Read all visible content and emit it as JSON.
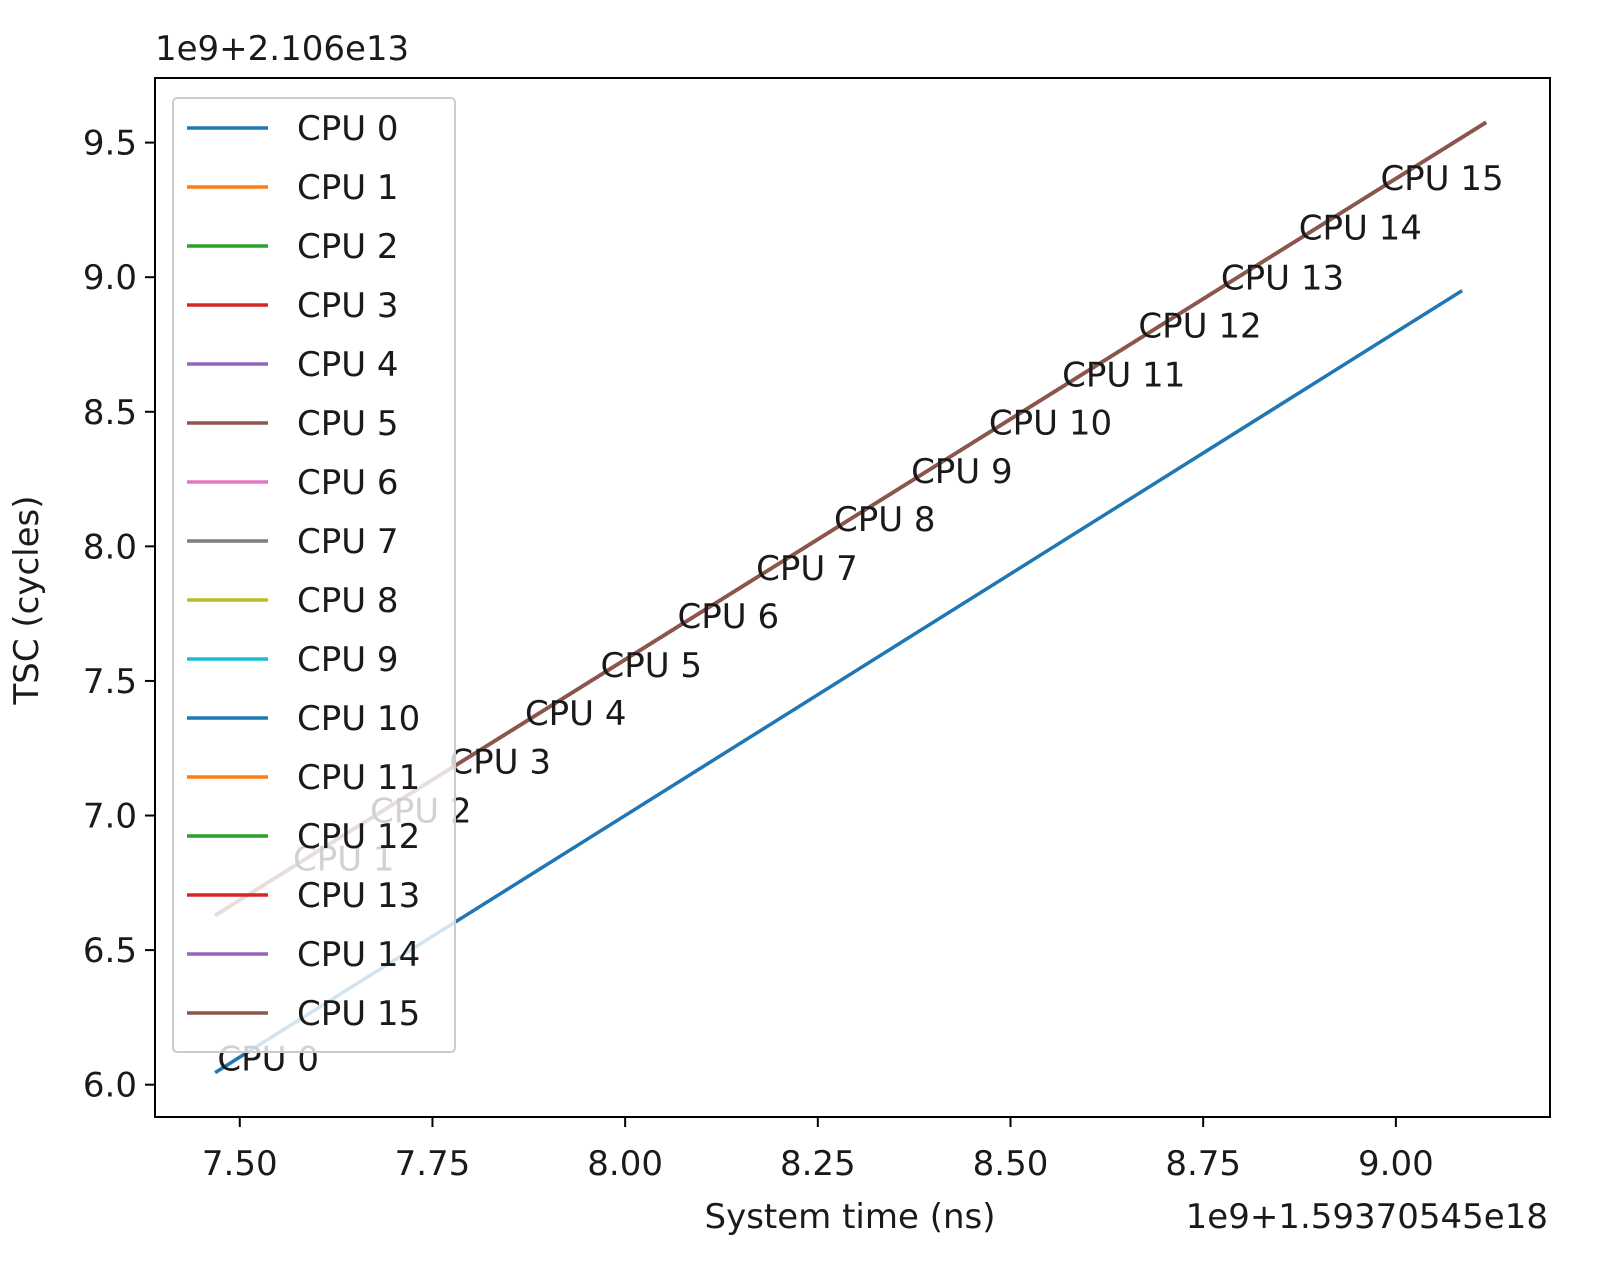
{
  "chart_data": {
    "type": "line",
    "y_label": "TSC (cycles)",
    "x_label": "System time (ns)",
    "y_offset": "1e9+2.106e13",
    "x_offset": "1e9+1.59370545e18",
    "xlim": [
      7.39,
      9.2
    ],
    "ylim": [
      5.88,
      9.74
    ],
    "xticks": [
      {
        "value": 7.5,
        "label": "7.50"
      },
      7.75,
      {
        "value": 8.0,
        "label": "8.00"
      },
      8.25,
      {
        "value": 8.5,
        "label": "8.50"
      },
      8.75,
      {
        "value": 9.0,
        "label": "9.00"
      }
    ],
    "yticks": [
      {
        "value": 6.0,
        "label": "6.0"
      },
      6.5,
      {
        "value": 7.0,
        "label": "7.0"
      },
      7.5,
      {
        "value": 8.0,
        "label": "8.0"
      },
      8.5,
      {
        "value": 9.0,
        "label": "9.0"
      },
      9.5
    ],
    "legend": "upper left",
    "series": [
      {
        "name": "CPU 0",
        "color": "#1f77b4",
        "x": [
          7.468,
          9.086
        ],
        "values": [
          6.045,
          8.95
        ]
      },
      {
        "name": "CPU 1",
        "color": "#ff7f0e",
        "x": [
          7.468,
          9.117
        ],
        "values": [
          6.629,
          9.575
        ]
      },
      {
        "name": "CPU 2",
        "color": "#2ca02c",
        "x": [
          7.468,
          9.117
        ],
        "values": [
          6.629,
          9.575
        ]
      },
      {
        "name": "CPU 3",
        "color": "#d62728",
        "x": [
          7.468,
          9.117
        ],
        "values": [
          6.629,
          9.575
        ]
      },
      {
        "name": "CPU 4",
        "color": "#9467bd",
        "x": [
          7.468,
          9.117
        ],
        "values": [
          6.629,
          9.575
        ]
      },
      {
        "name": "CPU 5",
        "color": "#8c564b",
        "x": [
          7.468,
          9.117
        ],
        "values": [
          6.629,
          9.575
        ]
      },
      {
        "name": "CPU 6",
        "color": "#e377c2",
        "x": [
          7.468,
          9.117
        ],
        "values": [
          6.629,
          9.575
        ]
      },
      {
        "name": "CPU 7",
        "color": "#7f7f7f",
        "x": [
          7.468,
          9.117
        ],
        "values": [
          6.629,
          9.575
        ]
      },
      {
        "name": "CPU 8",
        "color": "#bcbd22",
        "x": [
          7.468,
          9.117
        ],
        "values": [
          6.629,
          9.575
        ]
      },
      {
        "name": "CPU 9",
        "color": "#17becf",
        "x": [
          7.468,
          9.117
        ],
        "values": [
          6.629,
          9.575
        ]
      },
      {
        "name": "CPU 10",
        "color": "#1f77b4",
        "x": [
          7.468,
          9.117
        ],
        "values": [
          6.629,
          9.575
        ]
      },
      {
        "name": "CPU 11",
        "color": "#ff7f0e",
        "x": [
          7.468,
          9.117
        ],
        "values": [
          6.629,
          9.575
        ]
      },
      {
        "name": "CPU 12",
        "color": "#2ca02c",
        "x": [
          7.468,
          9.117
        ],
        "values": [
          6.629,
          9.575
        ]
      },
      {
        "name": "CPU 13",
        "color": "#d62728",
        "x": [
          7.468,
          9.117
        ],
        "values": [
          6.629,
          9.575
        ]
      },
      {
        "name": "CPU 14",
        "color": "#9467bd",
        "x": [
          7.468,
          9.117
        ],
        "values": [
          6.629,
          9.575
        ]
      },
      {
        "name": "CPU 15",
        "color": "#8c564b",
        "x": [
          7.468,
          9.117
        ],
        "values": [
          6.629,
          9.575
        ]
      }
    ],
    "annotations": [
      {
        "text": "CPU 0",
        "x": 7.471,
        "y": 6.052
      },
      {
        "text": "CPU 1",
        "x": 7.569,
        "y": 6.796
      },
      {
        "text": "CPU 2",
        "x": 7.669,
        "y": 6.975
      },
      {
        "text": "CPU 3",
        "x": 7.772,
        "y": 7.157
      },
      {
        "text": "CPU 4",
        "x": 7.87,
        "y": 7.336
      },
      {
        "text": "CPU 5",
        "x": 7.968,
        "y": 7.514
      },
      {
        "text": "CPU 6",
        "x": 8.068,
        "y": 7.696
      },
      {
        "text": "CPU 7",
        "x": 8.17,
        "y": 7.875
      },
      {
        "text": "CPU 8",
        "x": 8.271,
        "y": 8.057
      },
      {
        "text": "CPU 9",
        "x": 8.371,
        "y": 8.236
      },
      {
        "text": "CPU 10",
        "x": 8.472,
        "y": 8.415
      },
      {
        "text": "CPU 11",
        "x": 8.567,
        "y": 8.593
      },
      {
        "text": "CPU 12",
        "x": 8.666,
        "y": 8.776
      },
      {
        "text": "CPU 13",
        "x": 8.773,
        "y": 8.955
      },
      {
        "text": "CPU 14",
        "x": 8.874,
        "y": 9.14
      },
      {
        "text": "CPU 15",
        "x": 8.98,
        "y": 9.323
      }
    ]
  }
}
